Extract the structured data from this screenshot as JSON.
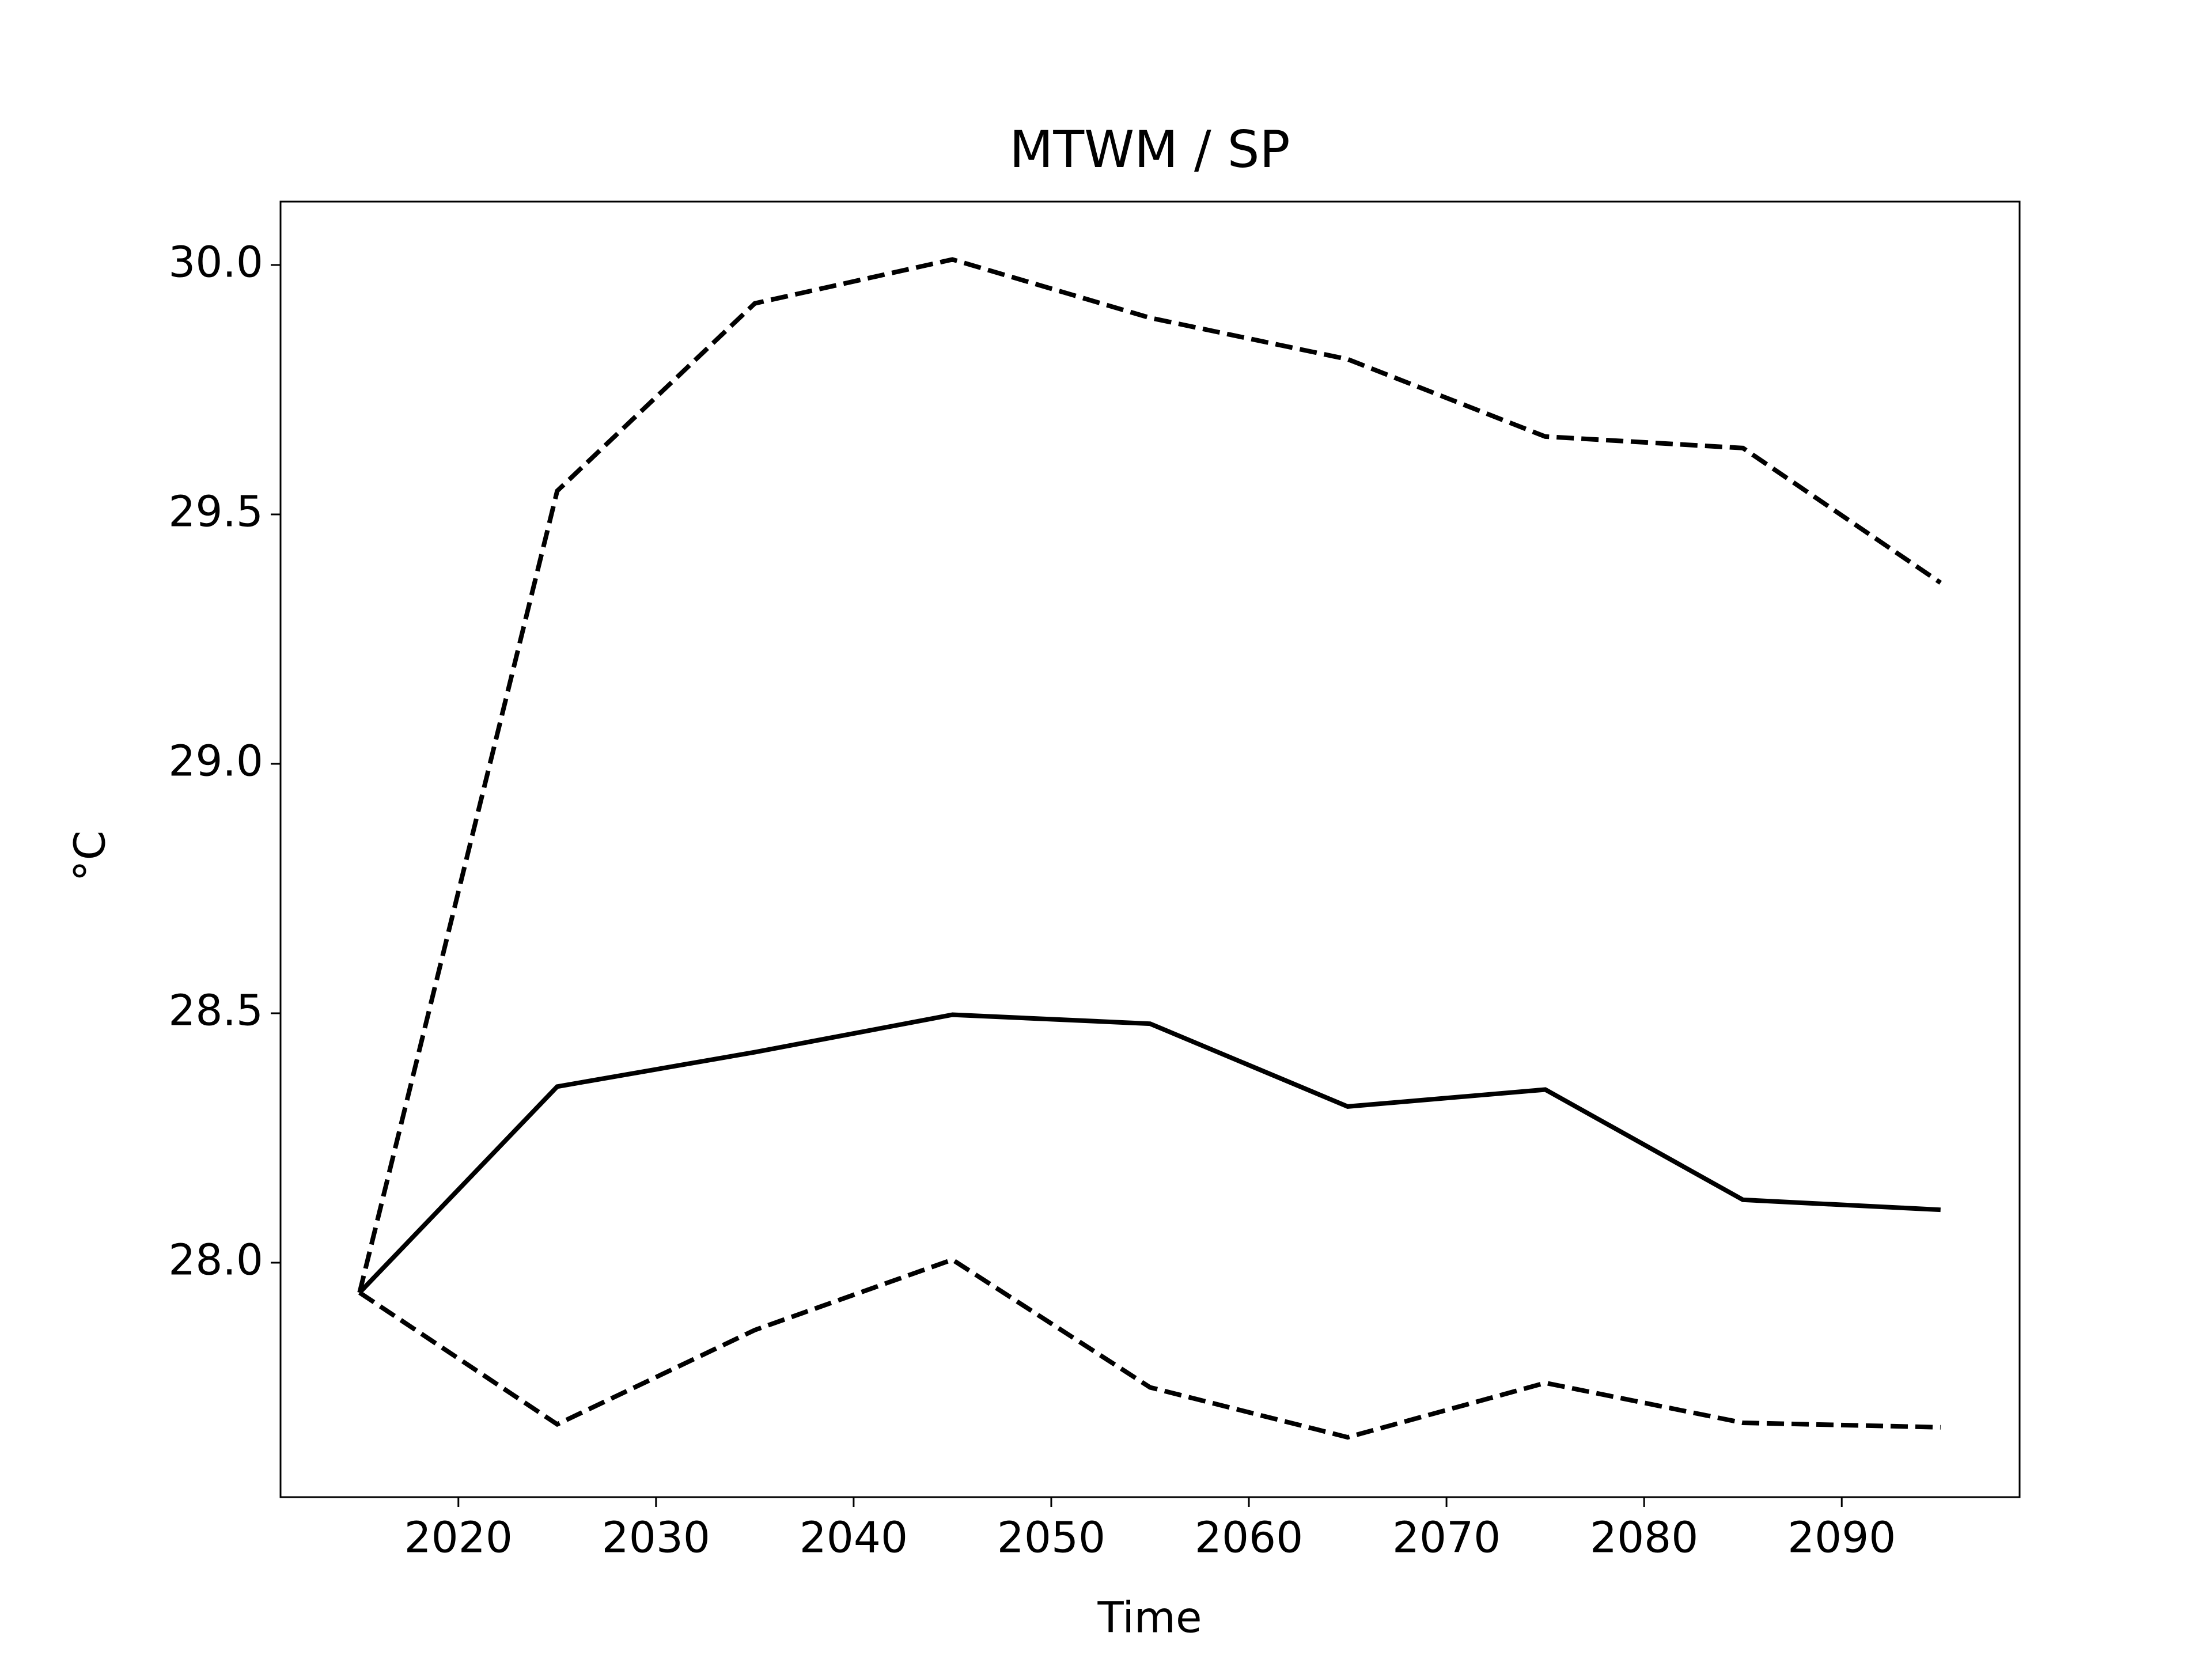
{
  "chart_data": {
    "type": "line",
    "title": "MTWM / SP",
    "xlabel": "Time",
    "ylabel": "°C",
    "x": [
      2015,
      2025,
      2035,
      2045,
      2055,
      2065,
      2075,
      2085,
      2095
    ],
    "series": [
      {
        "color": "#000000",
        "dash": "solid",
        "values": [
          27.94,
          28.353,
          28.422,
          28.497,
          28.479,
          28.313,
          28.347,
          28.126,
          28.106
        ]
      },
      {
        "color": "#000000",
        "dash": "dashed",
        "values": [
          27.94,
          29.547,
          29.923,
          30.011,
          29.894,
          29.811,
          29.656,
          29.633,
          29.363
        ]
      },
      {
        "color": "#000000",
        "dash": "dashed",
        "values": [
          27.94,
          27.676,
          27.865,
          28.006,
          27.75,
          27.65,
          27.759,
          27.679,
          27.67
        ]
      }
    ],
    "xlim": [
      2011,
      2099
    ],
    "xticks": [
      2020,
      2030,
      2040,
      2050,
      2060,
      2070,
      2080,
      2090
    ],
    "ylim": [
      27.53,
      30.127
    ],
    "yticks": [
      {
        "value": 28,
        "label": "28.0"
      },
      28.5,
      {
        "value": 29,
        "label": "29.0"
      },
      29.5,
      {
        "value": 30,
        "label": "30.0"
      }
    ],
    "grid": false
  }
}
